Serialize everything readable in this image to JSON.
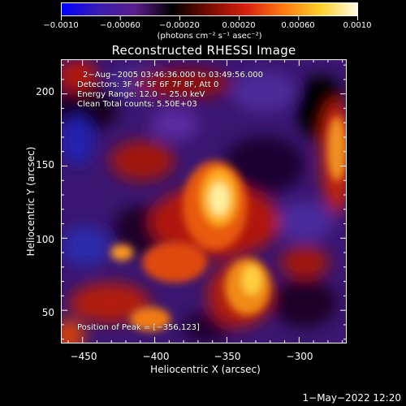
{
  "colorbar": {
    "tick_labels": [
      "−0.0010",
      "−0.00060",
      "−0.00020",
      "0.00020",
      "0.00060",
      "0.0010"
    ],
    "unit_label": "(photons cm⁻² s⁻¹ asec⁻²)",
    "colormap": [
      "#0000ff",
      "#3a1cb0",
      "#5a1e8a",
      "#000000",
      "#7a0c00",
      "#d8200e",
      "#ff7a10",
      "#ffcf2a",
      "#fffbe6"
    ]
  },
  "plot": {
    "title": "Reconstructed RHESSI Image",
    "xlabel": "Heliocentric X (arcsec)",
    "ylabel": "Heliocentric Y (arcsec)",
    "xlim": [
      -465,
      -267
    ],
    "ylim": [
      27,
      224
    ],
    "x_ticks": [
      {
        "value": -450,
        "label": "−450"
      },
      {
        "value": -400,
        "label": "−400"
      },
      {
        "value": -350,
        "label": "−350"
      },
      {
        "value": -300,
        "label": "−300"
      }
    ],
    "y_ticks": [
      {
        "value": 50,
        "label": "50"
      },
      {
        "value": 100,
        "label": "100"
      },
      {
        "value": 150,
        "label": "150"
      },
      {
        "value": 200,
        "label": "200"
      }
    ]
  },
  "annotations": {
    "time_range": "2−Aug−2005 03:46:36.000 to 03:49:56.000",
    "detectors": "Detectors: 3F 4F 5F 6F 7F 8F, Att 0",
    "energy_range": "Energy Range: 12.0 − 25.0 keV",
    "clean_counts": "Clean     Total counts: 5.50E+03",
    "peak_position": "Position of Peak = [−356,123]"
  },
  "footer": {
    "timestamp": "1−May−2022 12:20"
  }
}
